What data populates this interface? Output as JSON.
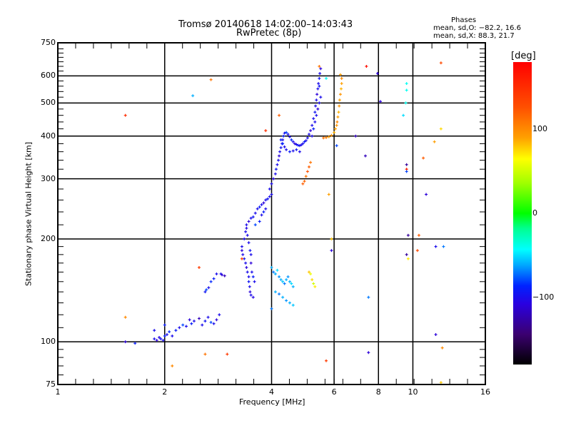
{
  "title_line1": "Tromsø 20140618 14:02:00–14:03:43",
  "title_line2": "RwPretec (8p)",
  "phases": {
    "heading": "Phases",
    "o_line": "mean, sd,O: −82.2, 16.6",
    "x_line": "mean, sd,X:  88.3, 21.7"
  },
  "colorbar": {
    "label": "[deg]",
    "ticks": [
      "100",
      "0",
      "−100"
    ],
    "tick_values": [
      100,
      0,
      -100
    ],
    "range": [
      -180,
      180
    ],
    "colors": [
      "#000000",
      "#3b0070",
      "#2a00e0",
      "#0044ff",
      "#00aaff",
      "#00ffee",
      "#00ff80",
      "#00ff00",
      "#a0ff00",
      "#ffff00",
      "#ffa000",
      "#ff5000",
      "#ff0000"
    ]
  },
  "chart_data": {
    "type": "scatter",
    "title": "Tromsø 20140618 14:02:00–14:03:43",
    "subtitle": "RwPretec (8p)",
    "xlabel": "Frequency [MHz]",
    "ylabel": "Stationary phase Virtual Height [km]",
    "xscale": "log",
    "yscale": "log",
    "xlim": [
      1,
      16
    ],
    "ylim": [
      75,
      750
    ],
    "xticks": [
      1,
      2,
      4,
      6,
      8,
      10,
      16
    ],
    "xtick_labels": [
      "1",
      "2",
      "4",
      "6",
      "8",
      "10",
      "16"
    ],
    "yticks": [
      75,
      100,
      200,
      300,
      400,
      500,
      600,
      750
    ],
    "ytick_labels": [
      "75",
      "100",
      "200",
      "300",
      "400",
      "500",
      "600",
      "750"
    ],
    "x_gridlines": [
      2,
      4,
      6,
      8,
      10
    ],
    "y_gridlines": [
      100,
      200,
      300,
      400,
      500,
      600
    ],
    "grid": true,
    "color_variable": "phase [deg]",
    "points": [
      [
        1.55,
        100,
        -110
      ],
      [
        1.65,
        99,
        -90
      ],
      [
        1.87,
        102,
        -100
      ],
      [
        1.9,
        101,
        -110
      ],
      [
        1.93,
        103,
        -105
      ],
      [
        1.95,
        102,
        -95
      ],
      [
        1.98,
        101,
        -100
      ],
      [
        2.0,
        104,
        -90
      ],
      [
        2.03,
        105,
        -100
      ],
      [
        2.06,
        107,
        -85
      ],
      [
        2.1,
        104,
        -100
      ],
      [
        2.15,
        108,
        -90
      ],
      [
        2.2,
        110,
        -100
      ],
      [
        2.25,
        112,
        -80
      ],
      [
        2.3,
        111,
        -100
      ],
      [
        2.35,
        116,
        -110
      ],
      [
        2.38,
        113,
        -90
      ],
      [
        2.42,
        115,
        -100
      ],
      [
        2.5,
        117,
        -120
      ],
      [
        2.55,
        112,
        -100
      ],
      [
        2.6,
        115,
        -95
      ],
      [
        2.65,
        118,
        -100
      ],
      [
        2.7,
        114,
        -80
      ],
      [
        2.75,
        113,
        -100
      ],
      [
        2.8,
        116,
        -110
      ],
      [
        2.85,
        120,
        -100
      ],
      [
        1.87,
        108,
        -100
      ],
      [
        2.0,
        112,
        -90
      ],
      [
        2.6,
        140,
        -95
      ],
      [
        2.62,
        142,
        -80
      ],
      [
        2.66,
        144,
        -100
      ],
      [
        2.7,
        150,
        -85
      ],
      [
        2.75,
        153,
        -90
      ],
      [
        2.8,
        158,
        -100
      ],
      [
        2.88,
        158,
        -100
      ],
      [
        2.9,
        157,
        -110
      ],
      [
        2.95,
        156,
        -120
      ],
      [
        3.3,
        190,
        -100
      ],
      [
        3.3,
        185,
        -110
      ],
      [
        3.32,
        180,
        -100
      ],
      [
        3.35,
        175,
        -95
      ],
      [
        3.38,
        170,
        -100
      ],
      [
        3.4,
        165,
        -110
      ],
      [
        3.42,
        160,
        -100
      ],
      [
        3.45,
        155,
        -100
      ],
      [
        3.45,
        150,
        -95
      ],
      [
        3.47,
        145,
        -100
      ],
      [
        3.48,
        140,
        -110
      ],
      [
        3.5,
        137,
        -100
      ],
      [
        3.55,
        135,
        -105
      ],
      [
        3.35,
        200,
        -100
      ],
      [
        3.38,
        210,
        -100
      ],
      [
        3.4,
        215,
        -105
      ],
      [
        3.42,
        205,
        -100
      ],
      [
        3.45,
        195,
        -100
      ],
      [
        3.48,
        185,
        -95
      ],
      [
        3.5,
        180,
        -100
      ],
      [
        3.5,
        170,
        -110
      ],
      [
        3.52,
        160,
        -100
      ],
      [
        3.55,
        155,
        -90
      ],
      [
        3.58,
        150,
        -100
      ],
      [
        3.4,
        220,
        -100
      ],
      [
        3.45,
        225,
        -110
      ],
      [
        3.5,
        230,
        -100
      ],
      [
        3.55,
        232,
        -95
      ],
      [
        3.6,
        238,
        -100
      ],
      [
        3.65,
        245,
        -100
      ],
      [
        3.7,
        248,
        -90
      ],
      [
        3.75,
        252,
        -100
      ],
      [
        3.8,
        255,
        -110
      ],
      [
        3.85,
        260,
        -100
      ],
      [
        3.9,
        262,
        -95
      ],
      [
        3.95,
        266,
        -100
      ],
      [
        4.0,
        270,
        -100
      ],
      [
        3.6,
        220,
        -80
      ],
      [
        3.7,
        225,
        -90
      ],
      [
        3.75,
        235,
        -100
      ],
      [
        3.8,
        240,
        -90
      ],
      [
        3.85,
        245,
        -100
      ],
      [
        3.95,
        280,
        -100
      ],
      [
        4.0,
        290,
        -100
      ],
      [
        4.05,
        300,
        -105
      ],
      [
        4.1,
        310,
        -100
      ],
      [
        4.12,
        320,
        -95
      ],
      [
        4.15,
        330,
        -100
      ],
      [
        4.18,
        340,
        -100
      ],
      [
        4.2,
        350,
        -110
      ],
      [
        4.22,
        360,
        -100
      ],
      [
        4.25,
        370,
        -95
      ],
      [
        4.28,
        380,
        -100
      ],
      [
        4.3,
        390,
        -100
      ],
      [
        4.32,
        400,
        -90
      ],
      [
        4.35,
        408,
        -100
      ],
      [
        4.4,
        410,
        -80
      ],
      [
        4.45,
        405,
        -100
      ],
      [
        4.5,
        398,
        -100
      ],
      [
        4.55,
        390,
        -85
      ],
      [
        4.6,
        385,
        -100
      ],
      [
        4.65,
        380,
        -110
      ],
      [
        4.7,
        378,
        -100
      ],
      [
        4.75,
        376,
        -90
      ],
      [
        4.8,
        375,
        -100
      ],
      [
        4.85,
        377,
        -100
      ],
      [
        4.9,
        380,
        -100
      ],
      [
        4.95,
        385,
        -90
      ],
      [
        5.0,
        388,
        -100
      ],
      [
        4.25,
        390,
        -90
      ],
      [
        4.3,
        380,
        -85
      ],
      [
        4.35,
        372,
        -100
      ],
      [
        4.4,
        365,
        -100
      ],
      [
        4.5,
        360,
        -90
      ],
      [
        4.6,
        362,
        -100
      ],
      [
        4.7,
        365,
        -95
      ],
      [
        4.8,
        360,
        -100
      ],
      [
        5.05,
        395,
        -100
      ],
      [
        5.1,
        405,
        -100
      ],
      [
        5.15,
        415,
        -110
      ],
      [
        5.2,
        430,
        -100
      ],
      [
        5.25,
        450,
        -100
      ],
      [
        5.3,
        470,
        -95
      ],
      [
        5.32,
        490,
        -100
      ],
      [
        5.35,
        510,
        -100
      ],
      [
        5.37,
        530,
        -110
      ],
      [
        5.4,
        550,
        -100
      ],
      [
        5.42,
        570,
        -100
      ],
      [
        5.45,
        590,
        -95
      ],
      [
        5.47,
        610,
        -100
      ],
      [
        5.5,
        630,
        -110
      ],
      [
        5.2,
        400,
        -100
      ],
      [
        5.25,
        420,
        -90
      ],
      [
        5.3,
        440,
        -100
      ],
      [
        5.35,
        460,
        -100
      ],
      [
        5.4,
        480,
        -110
      ],
      [
        5.45,
        500,
        -100
      ],
      [
        5.5,
        520,
        -100
      ],
      [
        5.45,
        560,
        -95
      ],
      [
        5.6,
        395,
        110
      ],
      [
        5.7,
        396,
        105
      ],
      [
        5.8,
        398,
        90
      ],
      [
        5.9,
        402,
        95
      ],
      [
        6.0,
        410,
        85
      ],
      [
        6.05,
        420,
        90
      ],
      [
        6.1,
        430,
        95
      ],
      [
        6.12,
        440,
        100
      ],
      [
        6.15,
        455,
        90
      ],
      [
        6.18,
        470,
        85
      ],
      [
        6.2,
        490,
        95
      ],
      [
        6.22,
        510,
        90
      ],
      [
        6.25,
        530,
        95
      ],
      [
        6.28,
        550,
        85
      ],
      [
        6.3,
        570,
        90
      ],
      [
        6.3,
        590,
        100
      ],
      [
        6.25,
        605,
        90
      ],
      [
        4.9,
        290,
        120
      ],
      [
        4.95,
        295,
        115
      ],
      [
        5.0,
        305,
        110
      ],
      [
        5.05,
        315,
        125
      ],
      [
        5.1,
        325,
        120
      ],
      [
        5.15,
        335,
        110
      ],
      [
        4.0,
        165,
        -60
      ],
      [
        4.05,
        160,
        -70
      ],
      [
        4.1,
        158,
        -60
      ],
      [
        4.15,
        162,
        -50
      ],
      [
        4.2,
        155,
        -65
      ],
      [
        4.25,
        152,
        -60
      ],
      [
        4.3,
        150,
        -55
      ],
      [
        4.35,
        148,
        -70
      ],
      [
        4.4,
        152,
        -60
      ],
      [
        4.45,
        155,
        -65
      ],
      [
        4.5,
        150,
        -60
      ],
      [
        4.55,
        148,
        -50
      ],
      [
        4.6,
        145,
        -60
      ],
      [
        4.1,
        140,
        -60
      ],
      [
        4.2,
        138,
        -70
      ],
      [
        4.3,
        135,
        -60
      ],
      [
        4.4,
        132,
        -65
      ],
      [
        4.5,
        130,
        -60
      ],
      [
        4.6,
        128,
        -55
      ],
      [
        4.0,
        125,
        -70
      ],
      [
        5.1,
        160,
        80
      ],
      [
        5.15,
        158,
        60
      ],
      [
        5.2,
        152,
        75
      ],
      [
        5.25,
        148,
        50
      ],
      [
        5.3,
        145,
        70
      ],
      [
        1.55,
        460,
        150
      ],
      [
        1.55,
        118,
        100
      ],
      [
        2.4,
        525,
        -60
      ],
      [
        2.7,
        585,
        110
      ],
      [
        2.1,
        85,
        100
      ],
      [
        2.5,
        165,
        140
      ],
      [
        2.6,
        92,
        110
      ],
      [
        3.0,
        92,
        140
      ],
      [
        3.3,
        175,
        140
      ],
      [
        3.85,
        415,
        150
      ],
      [
        4.2,
        460,
        120
      ],
      [
        5.45,
        640,
        110
      ],
      [
        5.7,
        590,
        -40
      ],
      [
        5.8,
        270,
        90
      ],
      [
        5.9,
        200,
        80
      ],
      [
        5.9,
        185,
        -110
      ],
      [
        5.7,
        88,
        140
      ],
      [
        7.4,
        640,
        170
      ],
      [
        7.95,
        610,
        -110
      ],
      [
        8.1,
        505,
        -110
      ],
      [
        6.9,
        400,
        -120
      ],
      [
        7.35,
        350,
        -120
      ],
      [
        6.1,
        375,
        -80
      ],
      [
        9.6,
        570,
        -40
      ],
      [
        9.6,
        545,
        -40
      ],
      [
        9.55,
        500,
        -40
      ],
      [
        9.4,
        460,
        -50
      ],
      [
        9.6,
        330,
        -130
      ],
      [
        9.6,
        320,
        160
      ],
      [
        9.6,
        315,
        -80
      ],
      [
        10.9,
        270,
        -110
      ],
      [
        11.5,
        385,
        90
      ],
      [
        10.7,
        345,
        120
      ],
      [
        9.7,
        205,
        -130
      ],
      [
        10.4,
        205,
        120
      ],
      [
        9.6,
        180,
        -130
      ],
      [
        11.6,
        190,
        -100
      ],
      [
        12.2,
        190,
        -70
      ],
      [
        11.6,
        105,
        -110
      ],
      [
        12.1,
        96,
        100
      ],
      [
        12.0,
        420,
        75
      ],
      [
        12.0,
        655,
        130
      ],
      [
        7.5,
        135,
        -70
      ],
      [
        7.5,
        93,
        -110
      ],
      [
        9.7,
        175,
        70
      ],
      [
        10.3,
        185,
        130
      ],
      [
        12.0,
        76,
        80
      ]
    ]
  }
}
